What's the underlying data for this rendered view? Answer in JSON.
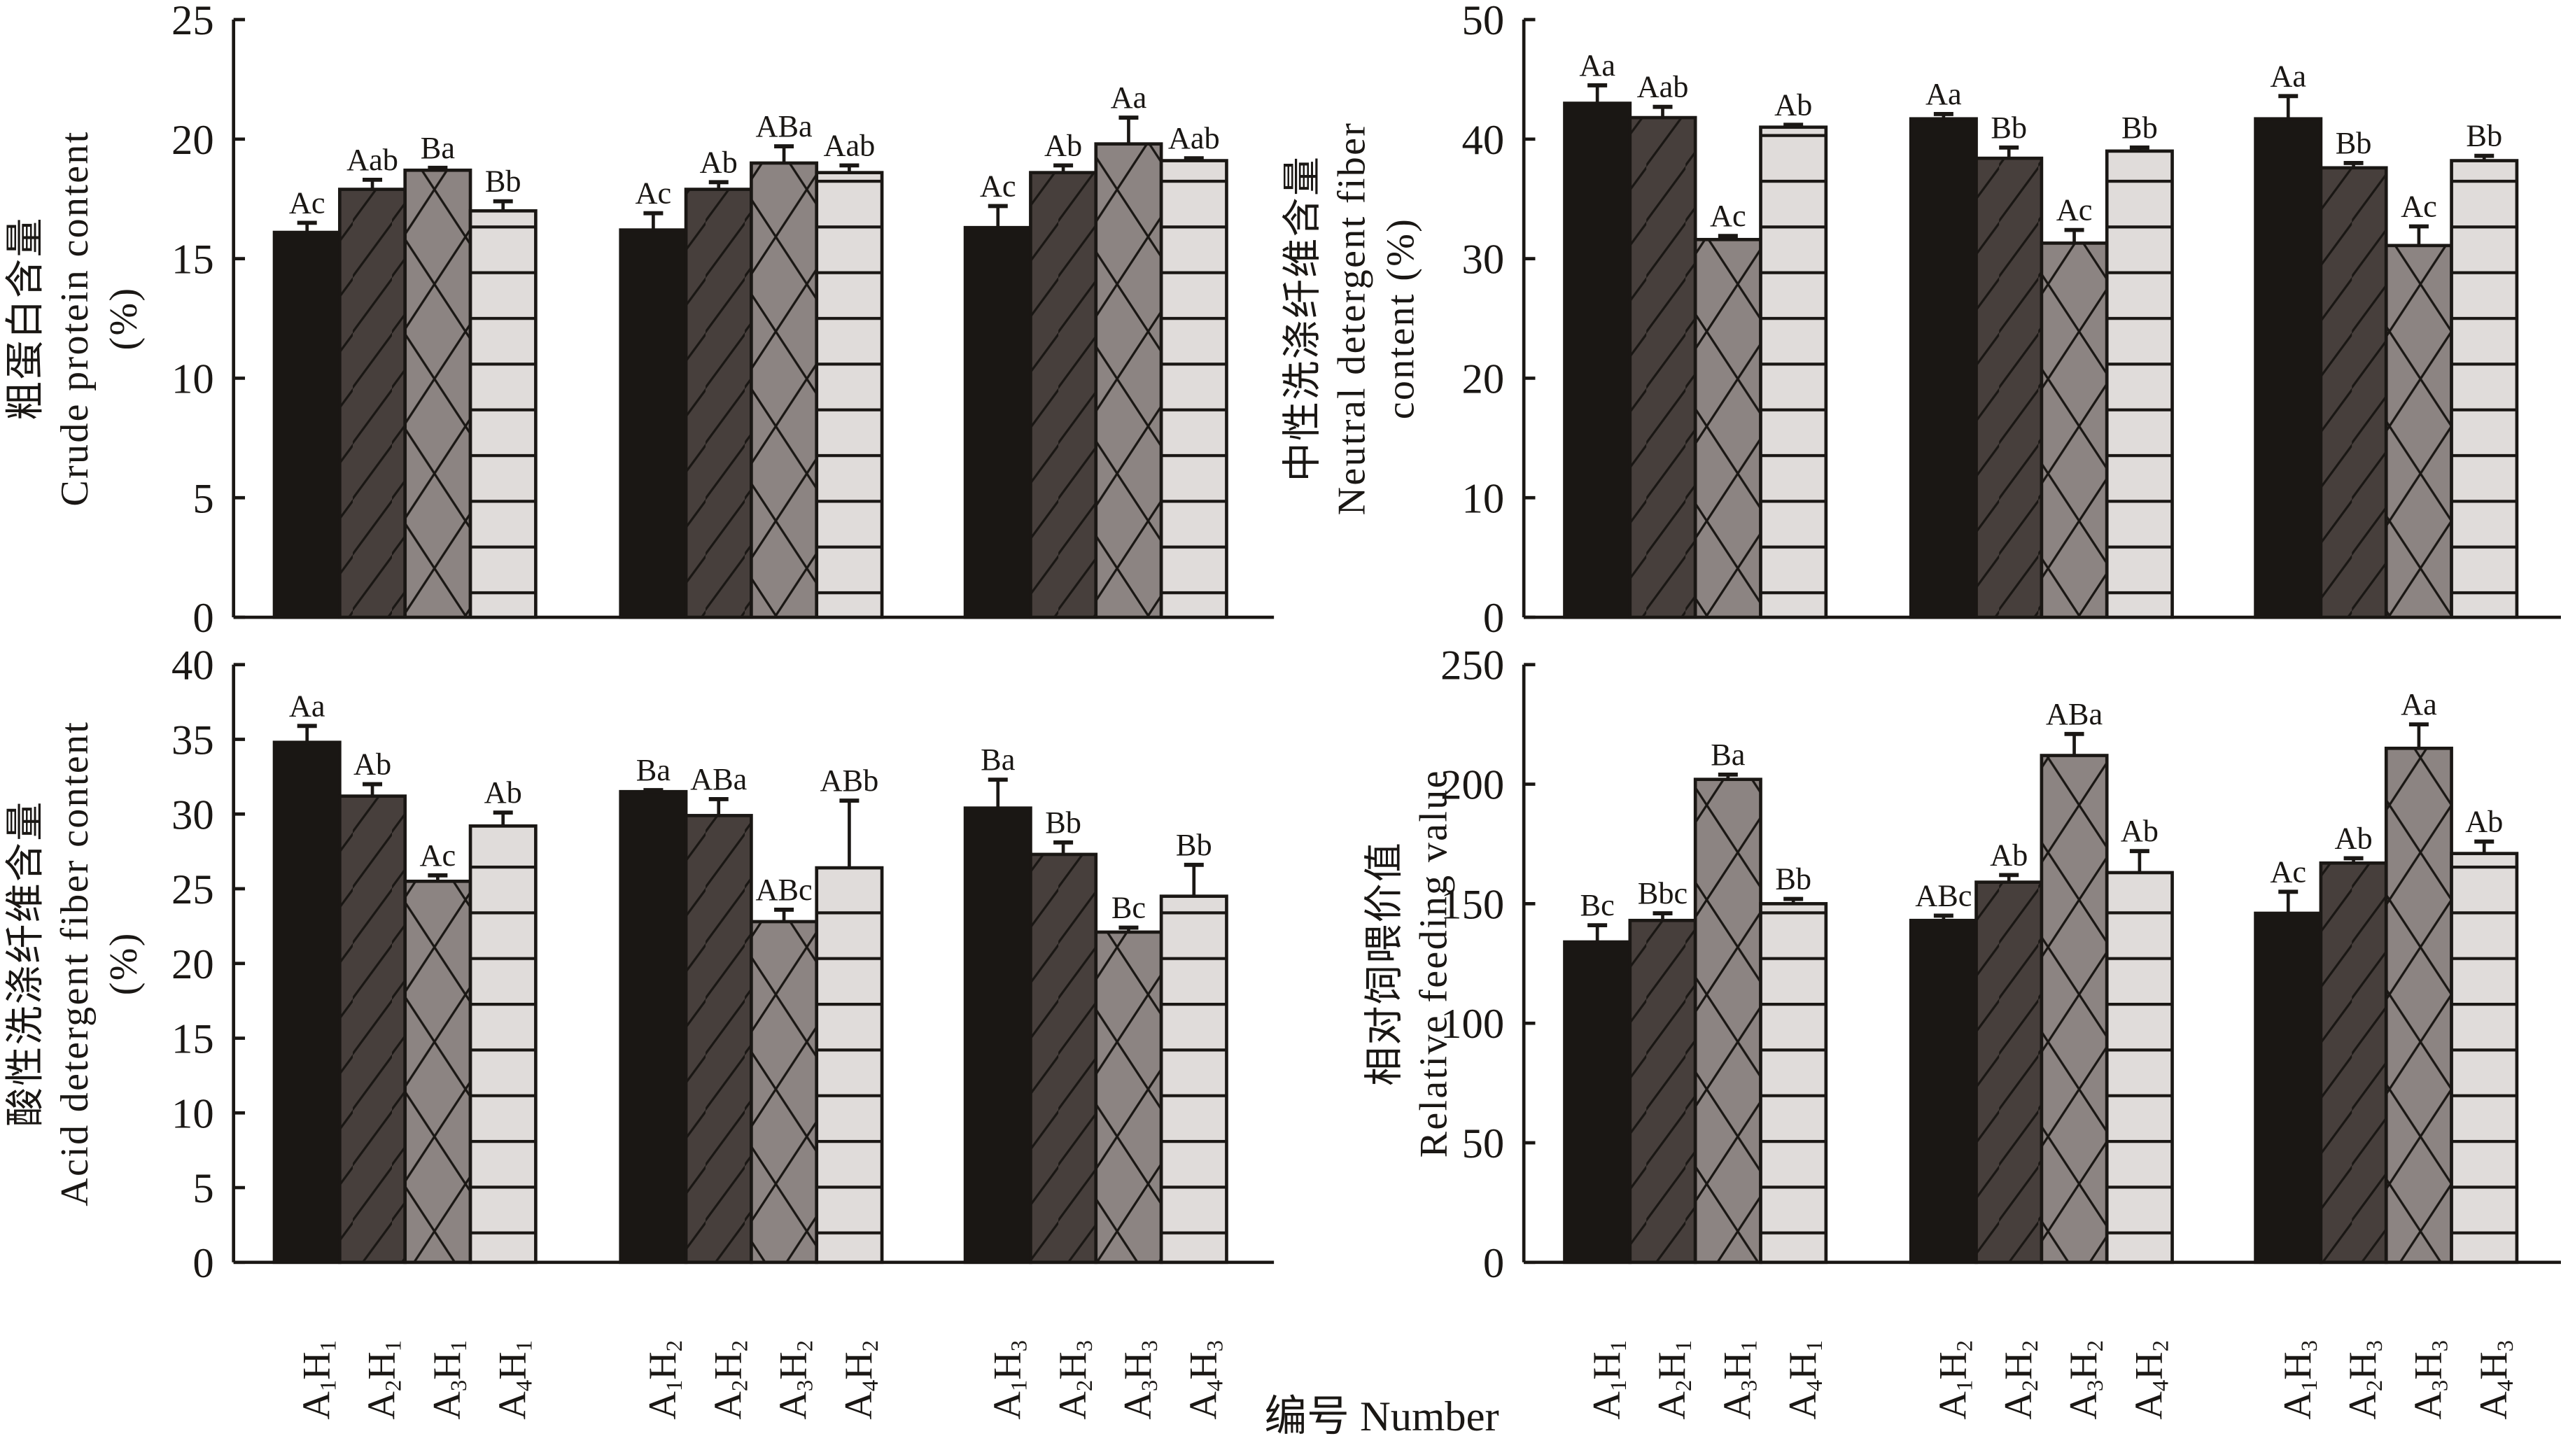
{
  "chart_data": [
    {
      "type": "bar",
      "id": "crude-protein",
      "ylabel_cn": "粗蛋白含量",
      "ylabel_en": "Crude protein content",
      "ylabel_unit": "(%)",
      "ylim": [
        0,
        25
      ],
      "yticks": [
        0,
        5,
        10,
        15,
        20,
        25
      ],
      "show_xticklabels": false,
      "groups": [
        "H1",
        "H2",
        "H3"
      ],
      "series": [
        {
          "name": "A1",
          "values": [
            16.1,
            16.2,
            16.3
          ],
          "errors": [
            0.4,
            0.7,
            0.9
          ],
          "letters": [
            "Ac",
            "Ac",
            "Ac"
          ]
        },
        {
          "name": "A2",
          "values": [
            17.9,
            17.9,
            18.6
          ],
          "errors": [
            0.4,
            0.3,
            0.3
          ],
          "letters": [
            "Aab",
            "Ab",
            "Ab"
          ]
        },
        {
          "name": "A3",
          "values": [
            18.7,
            19.0,
            19.8
          ],
          "errors": [
            0.1,
            0.7,
            1.1
          ],
          "letters": [
            "Ba",
            "ABa",
            "Aa"
          ]
        },
        {
          "name": "A4",
          "values": [
            17.0,
            18.6,
            19.1
          ],
          "errors": [
            0.4,
            0.3,
            0.1
          ],
          "letters": [
            "Bb",
            "Aab",
            "Aab"
          ]
        }
      ]
    },
    {
      "type": "bar",
      "id": "neutral-detergent-fiber",
      "ylabel_cn": "中性洗涤纤维含量",
      "ylabel_en": "Neutral detergent fiber",
      "ylabel_unit": "content (%)",
      "ylim": [
        0,
        50
      ],
      "yticks": [
        0,
        10,
        20,
        30,
        40,
        50
      ],
      "show_xticklabels": false,
      "groups": [
        "H1",
        "H2",
        "H3"
      ],
      "series": [
        {
          "name": "A1",
          "values": [
            43.0,
            41.7,
            41.7
          ],
          "errors": [
            1.5,
            0.4,
            1.9
          ],
          "letters": [
            "Aa",
            "Aa",
            "Aa"
          ]
        },
        {
          "name": "A2",
          "values": [
            41.8,
            38.4,
            37.6
          ],
          "errors": [
            0.9,
            0.9,
            0.4
          ],
          "letters": [
            "Aab",
            "Bb",
            "Bb"
          ]
        },
        {
          "name": "A3",
          "values": [
            31.6,
            31.3,
            31.1
          ],
          "errors": [
            0.3,
            1.1,
            1.6
          ],
          "letters": [
            "Ac",
            "Ac",
            "Ac"
          ]
        },
        {
          "name": "A4",
          "values": [
            41.0,
            39.0,
            38.2
          ],
          "errors": [
            0.2,
            0.3,
            0.4
          ],
          "letters": [
            "Ab",
            "Bb",
            "Bb"
          ]
        }
      ]
    },
    {
      "type": "bar",
      "id": "acid-detergent-fiber",
      "ylabel_cn": "酸性洗涤纤维含量",
      "ylabel_en": "Acid detergent fiber content",
      "ylabel_unit": "(%)",
      "ylim": [
        0,
        40
      ],
      "yticks": [
        0,
        5,
        10,
        15,
        20,
        25,
        30,
        35,
        40
      ],
      "show_xticklabels": true,
      "groups": [
        "H1",
        "H2",
        "H3"
      ],
      "series": [
        {
          "name": "A1",
          "values": [
            34.8,
            31.5,
            30.4
          ],
          "errors": [
            1.1,
            0.1,
            1.9
          ],
          "letters": [
            "Aa",
            "Ba",
            "Ba"
          ]
        },
        {
          "name": "A2",
          "values": [
            31.2,
            29.9,
            27.3
          ],
          "errors": [
            0.8,
            1.1,
            0.8
          ],
          "letters": [
            "Ab",
            "ABa",
            "Bb"
          ]
        },
        {
          "name": "A3",
          "values": [
            25.5,
            22.8,
            22.1
          ],
          "errors": [
            0.4,
            0.8,
            0.3
          ],
          "letters": [
            "Ac",
            "ABc",
            "Bc"
          ]
        },
        {
          "name": "A4",
          "values": [
            29.2,
            26.4,
            24.5
          ],
          "errors": [
            0.9,
            4.5,
            2.1
          ],
          "letters": [
            "Ab",
            "ABb",
            "Bb"
          ]
        }
      ]
    },
    {
      "type": "bar",
      "id": "relative-feeding-value",
      "ylabel_cn": "相对饲喂价值",
      "ylabel_en": "Relative feeding value",
      "ylabel_unit": "",
      "ylim": [
        0,
        250
      ],
      "yticks": [
        0,
        50,
        100,
        150,
        200,
        250
      ],
      "show_xticklabels": true,
      "groups": [
        "H1",
        "H2",
        "H3"
      ],
      "series": [
        {
          "name": "A1",
          "values": [
            134,
            143,
            146
          ],
          "errors": [
            7,
            2,
            9
          ],
          "letters": [
            "Bc",
            "ABc",
            "Ac"
          ]
        },
        {
          "name": "A2",
          "values": [
            143,
            159,
            167
          ],
          "errors": [
            3,
            3,
            2
          ],
          "letters": [
            "Bbc",
            "Ab",
            "Ab"
          ]
        },
        {
          "name": "A3",
          "values": [
            202,
            212,
            215
          ],
          "errors": [
            2,
            9,
            10
          ],
          "letters": [
            "Ba",
            "ABa",
            "Aa"
          ]
        },
        {
          "name": "A4",
          "values": [
            150,
            163,
            171
          ],
          "errors": [
            2,
            9,
            5
          ],
          "letters": [
            "Bb",
            "Ab",
            "Ab"
          ]
        }
      ]
    }
  ],
  "xlabel": "编号 Number",
  "series_styles": {
    "A1": {
      "fill": "#1a1714",
      "pattern": "solid"
    },
    "A2": {
      "fill": "#473f3c",
      "pattern": "diagonal"
    },
    "A3": {
      "fill": "#8c8482",
      "pattern": "crosshatch"
    },
    "A4": {
      "fill": "#e0dcda",
      "pattern": "horizontal"
    }
  }
}
